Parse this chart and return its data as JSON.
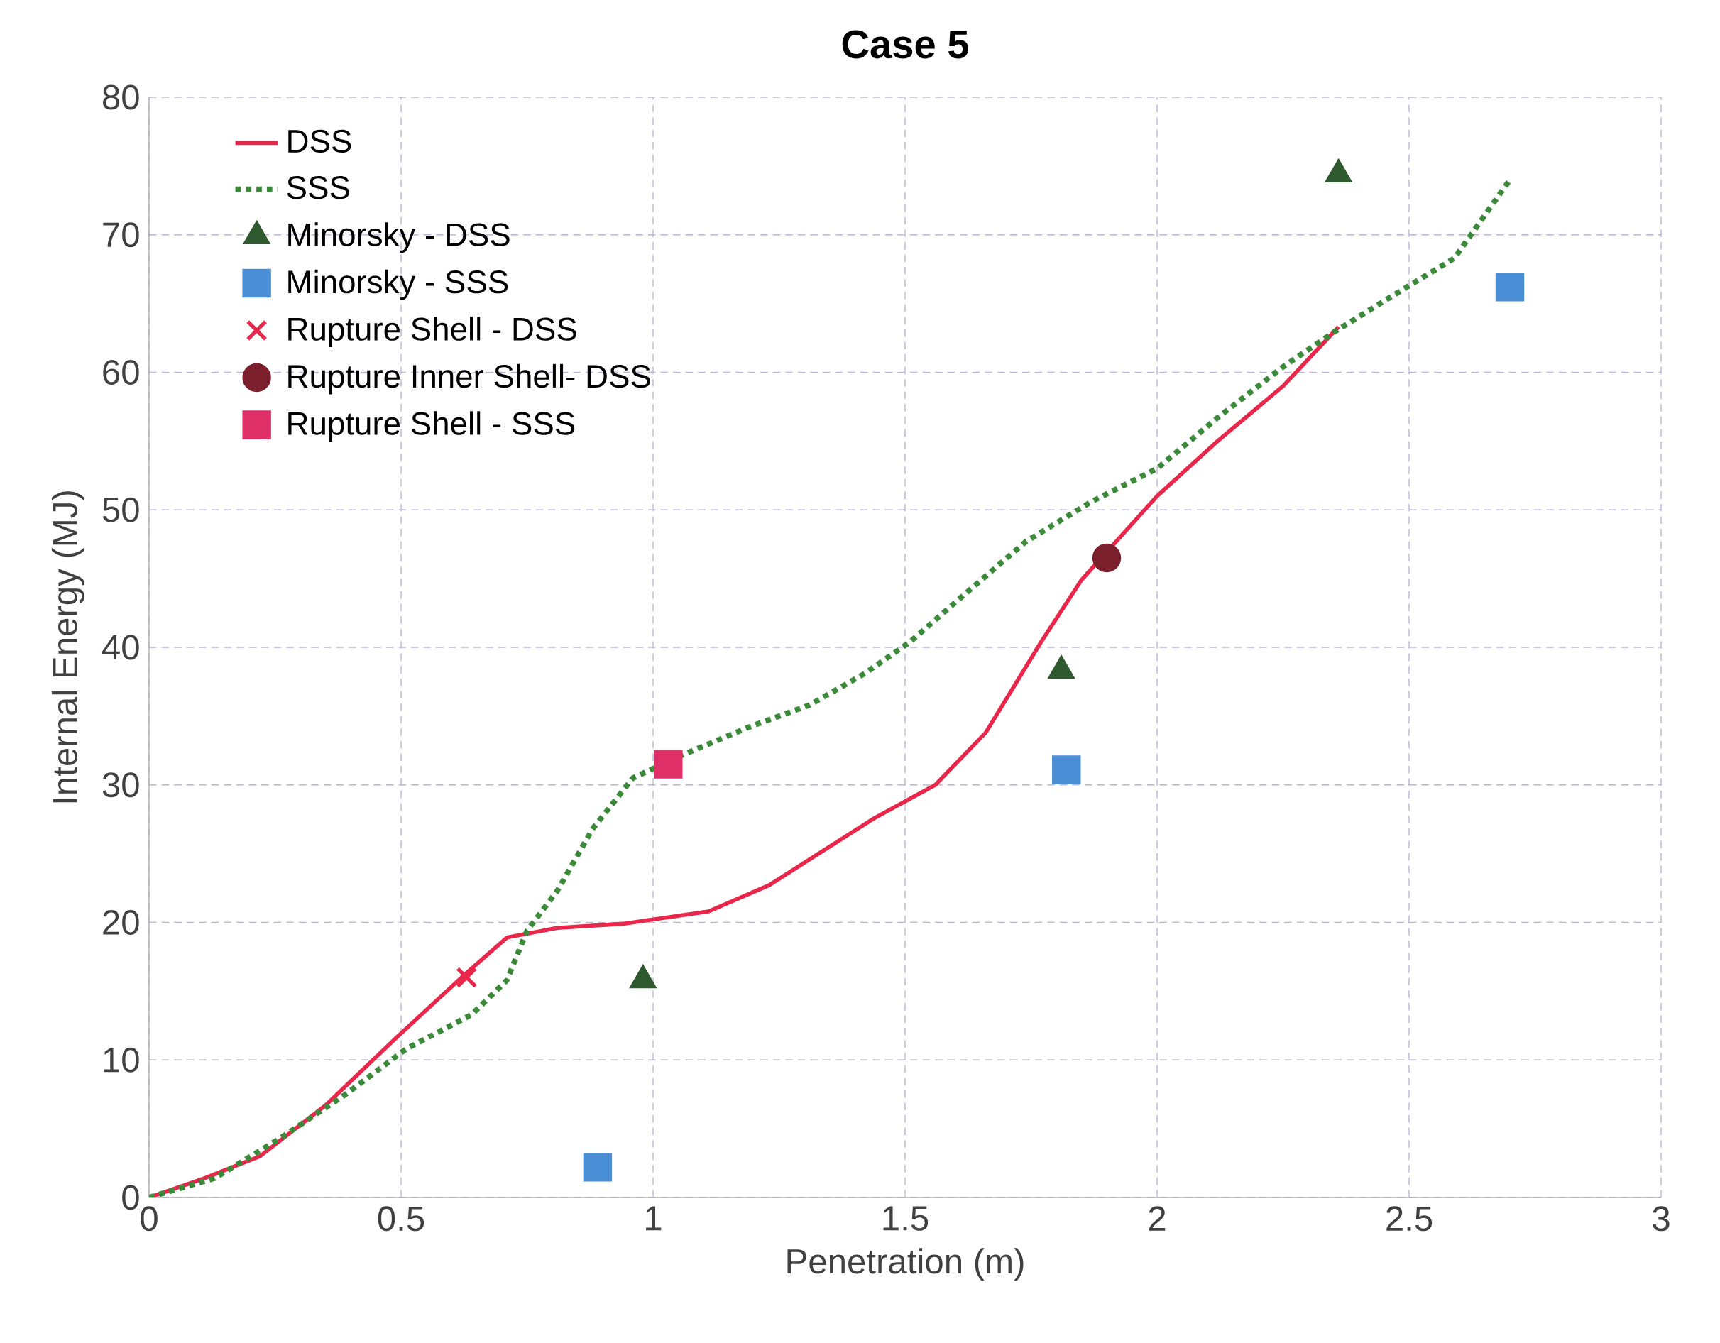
{
  "chart_data": {
    "type": "line",
    "title": "Case 5",
    "xlabel": "Penetration (m)",
    "ylabel": "Internal Energy (MJ)",
    "xlim": [
      0,
      3
    ],
    "ylim": [
      0,
      80
    ],
    "xticks": [
      0,
      0.5,
      1,
      1.5,
      2,
      2.5,
      3
    ],
    "yticks": [
      0,
      10,
      20,
      30,
      40,
      50,
      60,
      70,
      80
    ],
    "grid": true,
    "legend": "top left",
    "series": [
      {
        "name": "DSS",
        "color": "#e8274a",
        "line_style": "solid",
        "marker": "none",
        "x": [
          0,
          0.11,
          0.22,
          0.35,
          0.49,
          0.62,
          0.71,
          0.81,
          0.94,
          1.11,
          1.23,
          1.32,
          1.44,
          1.56,
          1.66,
          1.77,
          1.85,
          2.0,
          2.12,
          2.25,
          2.36
        ],
        "values": [
          0,
          1.4,
          3,
          6.7,
          11.6,
          16,
          18.9,
          19.6,
          19.9,
          20.8,
          22.7,
          24.8,
          27.6,
          30,
          33.8,
          40.4,
          44.9,
          51,
          55,
          59,
          63.3
        ]
      },
      {
        "name": "SSS",
        "color": "#3a8a3a",
        "line_style": "dotted",
        "marker": "none",
        "x": [
          0,
          0.13,
          0.26,
          0.39,
          0.51,
          0.64,
          0.71,
          0.75,
          0.81,
          0.88,
          0.96,
          1.06,
          1.19,
          1.31,
          1.42,
          1.51,
          1.61,
          1.74,
          1.87,
          2.0,
          2.12,
          2.25,
          2.35,
          2.46,
          2.59,
          2.7
        ],
        "values": [
          0,
          1.4,
          4.3,
          7.5,
          10.8,
          13.3,
          15.8,
          19.4,
          22.3,
          26.8,
          30.5,
          32.2,
          34.2,
          35.8,
          38.1,
          40.4,
          43.6,
          47.7,
          50.6,
          53,
          56.7,
          60.4,
          62.9,
          65.4,
          68.3,
          74
        ]
      },
      {
        "name": "Minorsky - DSS",
        "type": "scatter",
        "color": "#2f5a2f",
        "marker": "triangle",
        "x": [
          0.98,
          1.81,
          2.36
        ],
        "values": [
          15.8,
          38.3,
          74.4
        ]
      },
      {
        "name": "Minorsky - SSS",
        "type": "scatter",
        "color": "#4a8fd6",
        "marker": "square",
        "x": [
          0.89,
          1.82,
          2.7
        ],
        "values": [
          2.2,
          31.1,
          66.2
        ]
      },
      {
        "name": "Rupture Shell - DSS",
        "type": "scatter",
        "color": "#e8274a",
        "marker": "cross",
        "x": [
          0.63
        ],
        "values": [
          16.0
        ]
      },
      {
        "name": "Rupture Inner Shell- DSS",
        "type": "scatter",
        "color": "#7a1f2b",
        "marker": "circle",
        "x": [
          1.9
        ],
        "values": [
          46.5
        ]
      },
      {
        "name": "Rupture Shell - SSS",
        "type": "scatter",
        "color": "#e0306a",
        "marker": "square",
        "x": [
          1.03
        ],
        "values": [
          31.5
        ]
      }
    ]
  }
}
